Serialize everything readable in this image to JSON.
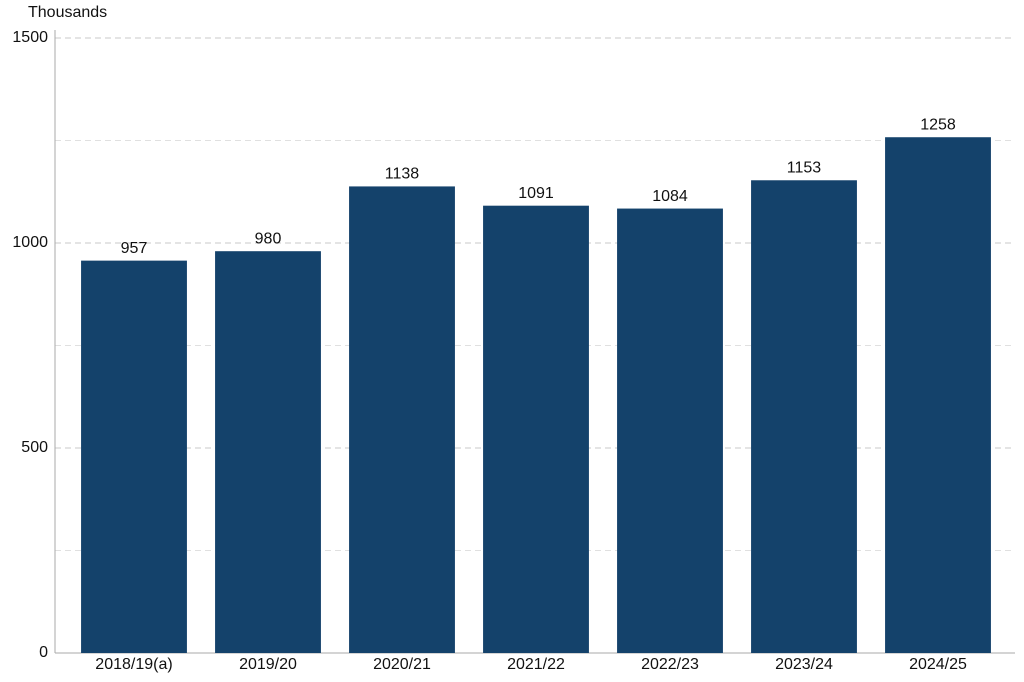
{
  "chart_data": {
    "type": "bar",
    "y_label": "Thousands",
    "categories": [
      "2018/19(a)",
      "2019/20",
      "2020/21",
      "2021/22",
      "2022/23",
      "2023/24",
      "2024/25"
    ],
    "values": [
      957,
      980,
      1138,
      1091,
      1084,
      1153,
      1258
    ],
    "color": "#14426b",
    "ylim": [
      0,
      1500
    ],
    "yticks": [
      0,
      500,
      1000,
      1500
    ],
    "minor_yticks": [
      250,
      750,
      1250
    ],
    "grid": true
  }
}
